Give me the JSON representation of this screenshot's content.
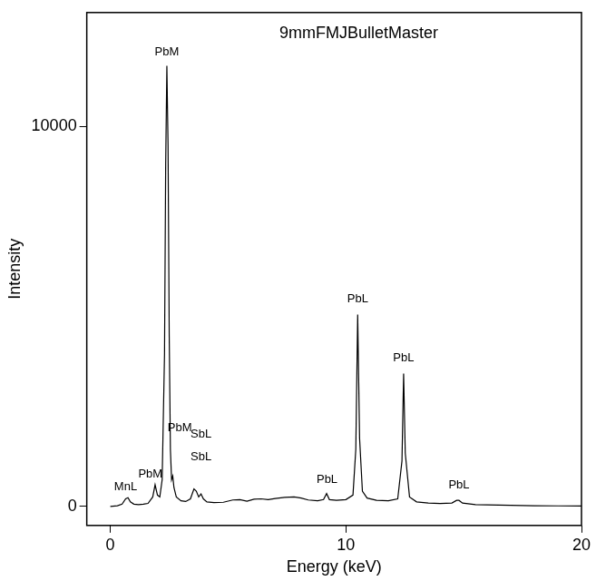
{
  "chart_data": {
    "type": "line",
    "title": "9mmFMJBulletMaster",
    "x_label": "Energy (keV)",
    "y_label": "Intensity",
    "x": [
      0,
      0.3,
      0.5,
      0.65,
      0.75,
      0.85,
      1.0,
      1.2,
      1.4,
      1.6,
      1.8,
      1.9,
      2.0,
      2.1,
      2.2,
      2.3,
      2.35,
      2.4,
      2.45,
      2.5,
      2.55,
      2.6,
      2.65,
      2.7,
      2.8,
      3.0,
      3.2,
      3.4,
      3.55,
      3.65,
      3.75,
      3.85,
      3.95,
      4.1,
      4.4,
      4.8,
      5.2,
      5.5,
      5.8,
      6.1,
      6.4,
      6.7,
      7.0,
      7.4,
      7.8,
      8.1,
      8.4,
      8.8,
      9.05,
      9.18,
      9.3,
      9.6,
      10.0,
      10.3,
      10.42,
      10.5,
      10.58,
      10.7,
      10.9,
      11.3,
      11.8,
      12.2,
      12.38,
      12.45,
      12.52,
      12.7,
      13.0,
      13.5,
      14.0,
      14.5,
      14.7,
      14.8,
      14.95,
      15.5,
      16,
      17,
      18,
      19,
      20
    ],
    "values": [
      0,
      20,
      60,
      200,
      230,
      120,
      60,
      50,
      60,
      80,
      250,
      570,
      300,
      250,
      700,
      4000,
      9000,
      11600,
      9500,
      4500,
      1500,
      700,
      800,
      500,
      250,
      150,
      130,
      200,
      460,
      400,
      250,
      330,
      200,
      120,
      100,
      110,
      170,
      180,
      140,
      190,
      200,
      180,
      210,
      240,
      250,
      220,
      170,
      150,
      180,
      340,
      180,
      160,
      180,
      300,
      1500,
      5050,
      1800,
      400,
      220,
      160,
      150,
      200,
      1200,
      3500,
      1400,
      250,
      120,
      90,
      80,
      90,
      160,
      160,
      90,
      50,
      40,
      30,
      20,
      15,
      10
    ],
    "color": "#000000",
    "xlim": [
      -1,
      20
    ],
    "xticks": [
      0,
      10,
      20
    ],
    "ylim": [
      -500,
      13000
    ],
    "yticks": [
      0,
      10000
    ],
    "grid": false,
    "annotations": [
      {
        "text": "PbM",
        "x": 2.4,
        "y": 11800
      },
      {
        "text": "MnL",
        "x": 0.65,
        "y": 350
      },
      {
        "text": "PbM",
        "x": 1.7,
        "y": 700
      },
      {
        "text": "PbM",
        "x": 2.95,
        "y": 1900
      },
      {
        "text": "SbL",
        "x": 3.85,
        "y": 1750
      },
      {
        "text": "SbL",
        "x": 3.85,
        "y": 1150
      },
      {
        "text": "PbL",
        "x": 9.2,
        "y": 550
      },
      {
        "text": "PbL",
        "x": 10.5,
        "y": 5300
      },
      {
        "text": "PbL",
        "x": 12.45,
        "y": 3750
      },
      {
        "text": "PbL",
        "x": 14.8,
        "y": 400
      }
    ]
  }
}
